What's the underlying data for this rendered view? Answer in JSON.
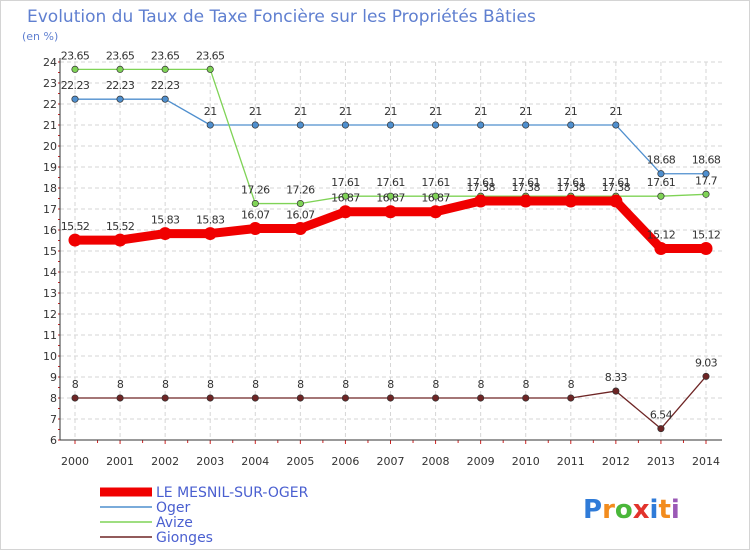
{
  "chart_data": {
    "type": "line",
    "title": "Evolution du Taux de Taxe Foncière sur les Propriétés Bâties",
    "ylabel": "(en %)",
    "xlabel": "",
    "categories": [
      "2000",
      "2001",
      "2002",
      "2003",
      "2004",
      "2005",
      "2006",
      "2007",
      "2008",
      "2009",
      "2010",
      "2011",
      "2012",
      "2013",
      "2014"
    ],
    "ylim": [
      6,
      24
    ],
    "yticks": [
      "6",
      "7",
      "8",
      "9",
      "10",
      "11",
      "12",
      "13",
      "14",
      "15",
      "16",
      "17",
      "18",
      "19",
      "20",
      "21",
      "22",
      "23",
      "24"
    ],
    "grid": true,
    "legend_position": "bottom-left",
    "series": [
      {
        "name": "Oger",
        "color": "#4f8fce",
        "values": [
          22.23,
          22.23,
          22.23,
          21,
          21,
          21,
          21,
          21,
          21,
          21,
          21,
          21,
          21,
          18.68,
          18.68
        ],
        "labels": [
          "22.23",
          "22.23",
          "22.23",
          "21",
          "21",
          "21",
          "21",
          "21",
          "21",
          "21",
          "21",
          "21",
          "21",
          "18.68",
          "18.68"
        ]
      },
      {
        "name": "Avize",
        "color": "#7fd356",
        "values": [
          23.65,
          23.65,
          23.65,
          23.65,
          17.26,
          17.26,
          17.61,
          17.61,
          17.61,
          17.61,
          17.61,
          17.61,
          17.61,
          17.61,
          17.7
        ],
        "labels": [
          "23.65",
          "23.65",
          "23.65",
          "23.65",
          "17.26",
          "17.26",
          "17.61",
          "17.61",
          "17.61",
          "17.61",
          "17.61",
          "17.61",
          "17.61",
          "17.61",
          "17.7"
        ]
      },
      {
        "name": "Gionges",
        "color": "#6e2525",
        "values": [
          8,
          8,
          8,
          8,
          8,
          8,
          8,
          8,
          8,
          8,
          8,
          8,
          8.33,
          6.54,
          9.03
        ],
        "labels": [
          "8",
          "8",
          "8",
          "8",
          "8",
          "8",
          "8",
          "8",
          "8",
          "8",
          "8",
          "8",
          "8.33",
          "6.54",
          "9.03"
        ]
      },
      {
        "name": "LE MESNIL-SUR-OGER",
        "color": "#f00000",
        "values": [
          15.52,
          15.52,
          15.83,
          15.83,
          16.07,
          16.07,
          16.87,
          16.87,
          16.87,
          17.38,
          17.38,
          17.38,
          17.38,
          15.12,
          15.12
        ],
        "labels": [
          "15.52",
          "15.52",
          "15.83",
          "15.83",
          "16.07",
          "16.07",
          "16.87",
          "16.87",
          "16.87",
          "17.38",
          "17.38",
          "17.38",
          "17.38",
          "15.12",
          "15.12"
        ]
      }
    ],
    "legend": [
      "LE MESNIL-SUR-OGER",
      "Oger",
      "Avize",
      "Gionges"
    ]
  },
  "branding": {
    "logo_text": "Proxiti",
    "colors": [
      "#2f7bd8",
      "#f28c1e",
      "#4ab73a",
      "#e2332c",
      "#2f7bd8",
      "#f28c1e",
      "#9b59b6"
    ]
  }
}
